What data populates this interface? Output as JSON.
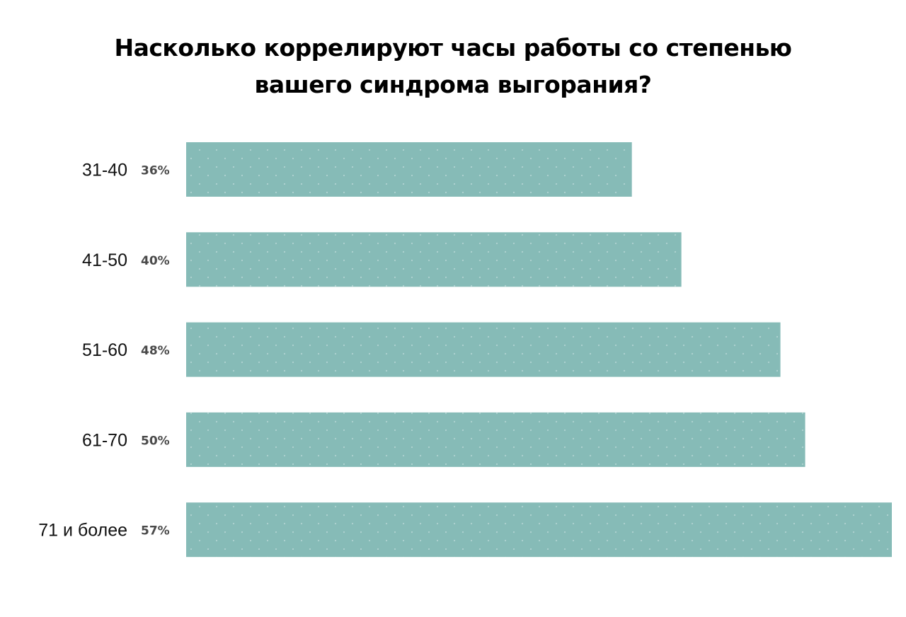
{
  "chart_data": {
    "type": "bar",
    "orientation": "horizontal",
    "title_lines": [
      "Насколько коррелируют часы работы со степенью",
      "вашего синдрома выгорания?"
    ],
    "categories": [
      "31-40",
      "41-50",
      "51-60",
      "61-70",
      "71 и более"
    ],
    "values": [
      36,
      40,
      48,
      50,
      57
    ],
    "value_labels": [
      "36%",
      "40%",
      "48%",
      "50%",
      "57%"
    ],
    "unit": "%",
    "bar_color": "#86bbb7",
    "grid": false,
    "legend": "none"
  }
}
